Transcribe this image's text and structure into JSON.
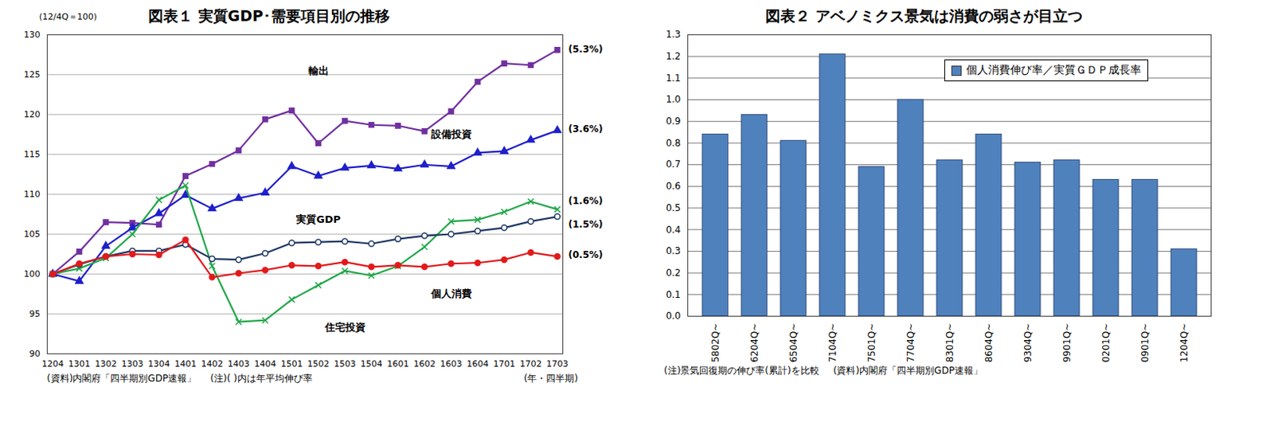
{
  "chart_data": [
    {
      "type": "line",
      "title": "図表１ 実質GDP･需要項目別の推移",
      "ylabel": "(12/4Q＝100)",
      "xlabel": "(年・四半期)",
      "notes": [
        "(資料)内閣府「四半期別GDP速報」",
        "(注)( )内は年平均伸び率"
      ],
      "x": [
        "1204",
        "1301",
        "1302",
        "1303",
        "1304",
        "1401",
        "1402",
        "1403",
        "1404",
        "1501",
        "1502",
        "1503",
        "1504",
        "1601",
        "1602",
        "1603",
        "1604",
        "1701",
        "1702",
        "1703"
      ],
      "ylim": [
        90,
        130
      ],
      "yticks": [
        90,
        95,
        100,
        105,
        110,
        115,
        120,
        125,
        130
      ],
      "grid": true,
      "series": [
        {
          "name": "輸出",
          "color": "#7030A0",
          "marker": "square",
          "values": [
            100,
            102.8,
            106.5,
            106.4,
            106.2,
            112.3,
            113.8,
            115.5,
            119.4,
            120.5,
            116.4,
            119.2,
            118.7,
            118.6,
            117.9,
            120.4,
            124.1,
            126.4,
            126.2,
            128.1
          ],
          "label_position": [
            "1502",
            125.5
          ],
          "end_label": {
            "text": "(5.3%)",
            "y": 128.2
          }
        },
        {
          "name": "設備投資",
          "color": "#1F1FCC",
          "marker": "triangle",
          "values": [
            100,
            99.1,
            103.5,
            105.8,
            107.6,
            109.9,
            108.2,
            109.5,
            110.2,
            113.5,
            112.3,
            113.3,
            113.6,
            113.2,
            113.7,
            113.5,
            115.2,
            115.4,
            116.8,
            118.0
          ],
          "label_position": [
            "1603",
            117.5
          ],
          "end_label": {
            "text": "(3.6%)",
            "y": 118.2
          }
        },
        {
          "name": "住宅投資",
          "color": "#22A84A",
          "marker": "x",
          "values": [
            100,
            100.7,
            102.0,
            105.0,
            109.3,
            111.1,
            101.0,
            94.0,
            94.2,
            96.8,
            98.6,
            100.4,
            99.8,
            101.0,
            103.4,
            106.6,
            106.8,
            107.8,
            109.1,
            108.1
          ],
          "label_position": [
            "1503",
            93.3
          ],
          "end_label": {
            "text": "(1.6%)",
            "y": 109.2
          }
        },
        {
          "name": "実質GDP",
          "color": "#1F3864",
          "marker": "circle-open",
          "values": [
            100,
            101.2,
            102.2,
            102.9,
            102.9,
            103.7,
            101.9,
            101.8,
            102.6,
            103.9,
            104.0,
            104.1,
            103.8,
            104.4,
            104.8,
            105.0,
            105.4,
            105.8,
            106.6,
            107.2
          ],
          "label_position": [
            "1502",
            106.8
          ],
          "end_label": {
            "text": "(1.5%)",
            "y": 106.2
          }
        },
        {
          "name": "個人消費",
          "color": "#E31A1C",
          "marker": "circle",
          "values": [
            100,
            101.3,
            102.2,
            102.5,
            102.4,
            104.3,
            99.6,
            100.1,
            100.5,
            101.1,
            101.0,
            101.5,
            100.9,
            101.1,
            100.9,
            101.3,
            101.4,
            101.8,
            102.7,
            102.2
          ],
          "label_position": [
            "1603",
            97.5
          ],
          "end_label": {
            "text": "(0.5%)",
            "y": 102.4
          }
        }
      ]
    },
    {
      "type": "bar",
      "title": "図表２ アベノミクス景気は消費の弱さが目立つ",
      "notes": [
        "(注)景気回復期の伸び率(累計)を比較",
        "(資料)内閣府「四半期別GDP速報」"
      ],
      "categories": [
        "5802Q~",
        "6204Q~",
        "6504Q~",
        "7104Q~",
        "7501Q~",
        "7704Q~",
        "8301Q~",
        "8604Q~",
        "9304Q~",
        "9901Q~",
        "0201Q~",
        "0901Q~",
        "1204Q~"
      ],
      "series": [
        {
          "name": "個人消費伸び率／実質ＧＤＰ成長率",
          "color": "#4F81BD",
          "values": [
            0.84,
            0.93,
            0.81,
            1.21,
            0.69,
            1.0,
            0.72,
            0.84,
            0.71,
            0.72,
            0.63,
            0.63,
            0.31
          ]
        }
      ],
      "ylim": [
        0,
        1.3
      ],
      "yticks": [
        {
          "value": 0,
          "label": "0.0"
        },
        0.1,
        0.2,
        0.3,
        0.4,
        0.5,
        0.6,
        0.7,
        0.8,
        0.9,
        {
          "value": 1,
          "label": "1.0"
        },
        1.1,
        1.2,
        1.3
      ],
      "grid": true,
      "legend": "top-right"
    }
  ]
}
